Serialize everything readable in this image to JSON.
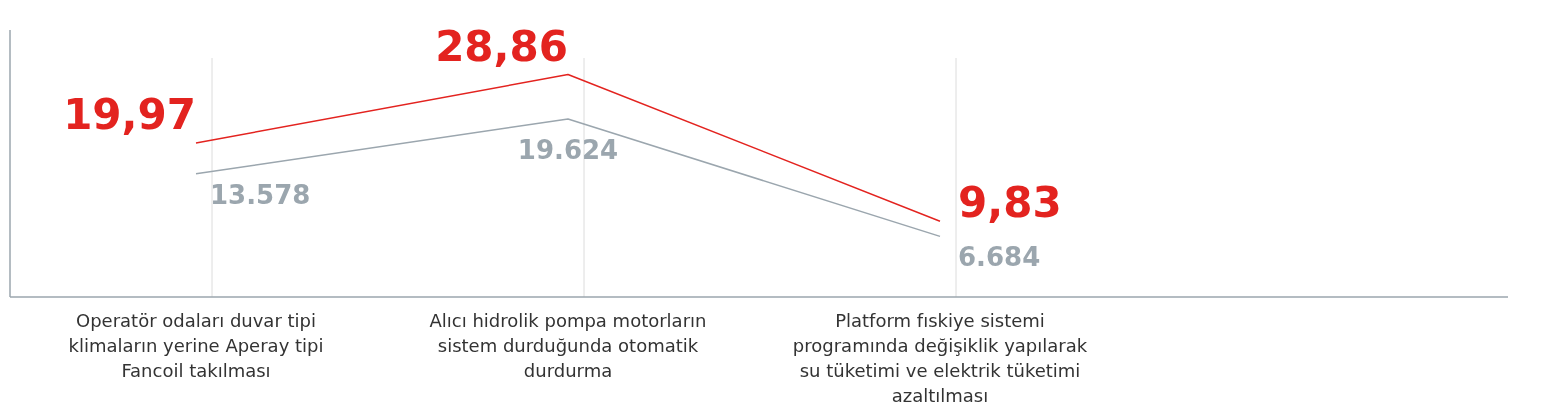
{
  "chart_data": {
    "type": "line",
    "categories": [
      "Operatör odaları duvar tipi klimaların yerine Aperay tipi Fancoil takılması",
      "Alıcı hidrolik pompa motorların sistem durduğunda otomatik durdurma",
      "Platform fıskiye sistemi programında değişiklik yapılarak su tüketimi ve elektrik tüketimi azaltılması"
    ],
    "series": [
      {
        "color": "#e3231f",
        "values": [
          19.97,
          28.86,
          9.83
        ],
        "value_labels": [
          "19,97",
          "28,86",
          "9,83"
        ]
      },
      {
        "color": "#9ba6ae",
        "axis": "y2",
        "values": [
          13578,
          19624,
          6684
        ],
        "value_labels": [
          "13.578",
          "19.624",
          "6.684"
        ]
      }
    ],
    "tick_labels": "x",
    "grid": "x",
    "marker": "none",
    "line_style": "solid"
  }
}
